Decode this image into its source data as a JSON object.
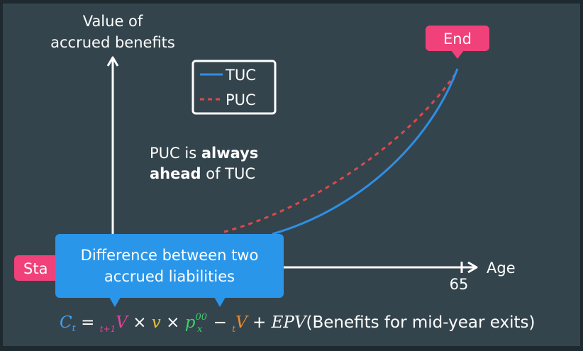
{
  "axes": {
    "y_label_line1": "Value of",
    "y_label_line2": "accrued benefits",
    "x_label": "Age",
    "x_tick": "65"
  },
  "legend": {
    "items": [
      {
        "label": "TUC",
        "color": "#2f8ee5",
        "style": "solid"
      },
      {
        "label": "PUC",
        "color": "#e04848",
        "style": "dashed"
      }
    ]
  },
  "annotation": {
    "line1_prefix": "PUC is ",
    "line1_bold": "always",
    "line2_bold": "ahead",
    "line2_suffix": " of TUC"
  },
  "markers": {
    "end_label": "End",
    "start_label": "Sta"
  },
  "callout": {
    "line1": "Difference between two",
    "line2": "accrued liabilities"
  },
  "formula": {
    "c": "C",
    "c_sub": "t",
    "equals": " = ",
    "v1_pre": "t+1",
    "v1": "V",
    "times1": " × ",
    "v": "v",
    "times2": " × ",
    "p": "p",
    "p_sup": "00",
    "p_sub": "x",
    "minus": " − ",
    "v2_pre": "t",
    "v2": "V",
    "plus": " + ",
    "epv": "EPV",
    "tail": "(Benefits for mid-year exits)"
  },
  "colors": {
    "background": "#34444c",
    "pink": "#f0417a",
    "callout_blue": "#2a96ea",
    "tuc_blue": "#2f8ee5",
    "puc_red": "#e04848",
    "formula_blue": "#3fa3f0",
    "formula_magenta": "#e8409a",
    "formula_yellow": "#e8c33a",
    "formula_green": "#3fcf6a",
    "formula_orange": "#f08a2a"
  }
}
